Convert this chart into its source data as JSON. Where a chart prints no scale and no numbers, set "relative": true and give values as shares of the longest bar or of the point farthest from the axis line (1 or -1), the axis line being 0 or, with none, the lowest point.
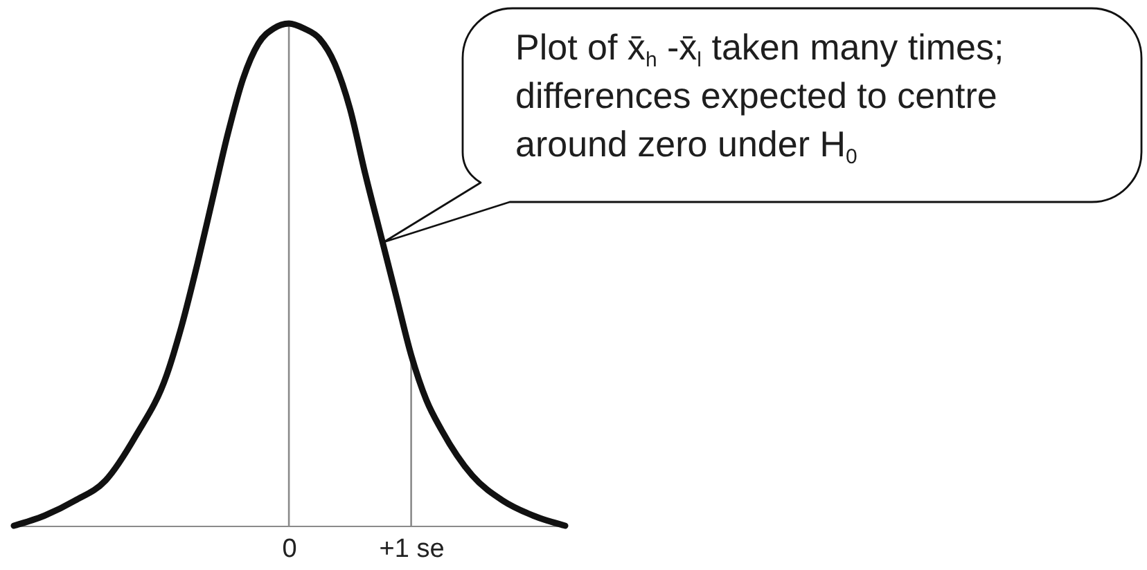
{
  "chart_data": {
    "type": "line",
    "relative": true,
    "x": [
      -2.25,
      -2,
      -1.75,
      -1.5,
      -1.25,
      -1,
      -0.875,
      -0.75,
      -0.625,
      -0.5,
      -0.375,
      -0.25,
      -0.125,
      0,
      0.125,
      0.25,
      0.375,
      0.5,
      0.625,
      0.75,
      0.875,
      1,
      1.125,
      1.25,
      1.5,
      1.75,
      2,
      2.26
    ],
    "series": [
      {
        "color": "#111111",
        "values": [
          0,
          0.02,
          0.05,
          0.09,
          0.18,
          0.3,
          0.4,
          0.52,
          0.65,
          0.78,
          0.89,
          0.96,
          0.99,
          1,
          0.99,
          0.97,
          0.92,
          0.83,
          0.7,
          0.58,
          0.46,
          0.34,
          0.25,
          0.19,
          0.1,
          0.05,
          0.02,
          0
        ]
      }
    ],
    "xlim": [
      -2.25,
      2.26
    ],
    "xticks": [
      0,
      {
        "value": 1,
        "label": "+1 se"
      }
    ],
    "ref_lines": [
      {
        "axis": "x",
        "value": 0,
        "color": "#8a8a8a"
      },
      {
        "axis": "x",
        "value": 1,
        "color": "#8a8a8a"
      }
    ],
    "annotations": [
      "Plot of x̄$_{h}$ -x̄$_{l}$ taken many times; differences expected to centre around zero under H$_{0}$"
    ]
  }
}
